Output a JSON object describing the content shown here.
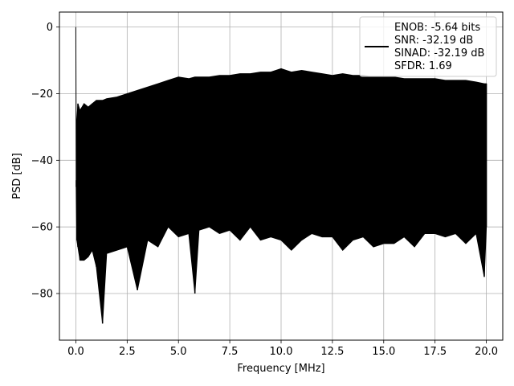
{
  "chart_data": {
    "type": "line",
    "title": "",
    "xlabel": "Frequency [MHz]",
    "ylabel": "PSD [dB]",
    "xlim": [
      -0.8,
      20.8
    ],
    "ylim": [
      -94,
      4.5
    ],
    "xticks": [
      0.0,
      2.5,
      5.0,
      7.5,
      10.0,
      12.5,
      15.0,
      17.5,
      20.0
    ],
    "xtick_labels": [
      "0.0",
      "2.5",
      "5.0",
      "7.5",
      "10.0",
      "12.5",
      "15.0",
      "17.5",
      "20.0"
    ],
    "yticks": [
      0,
      -20,
      -40,
      -60,
      -80
    ],
    "ytick_labels": [
      "0",
      "−20",
      "−40",
      "−60",
      "−80"
    ],
    "grid": true,
    "legend_position": "top-right",
    "series_color": "#000000",
    "series": [
      {
        "name": "",
        "x": [
          0.0,
          0.02,
          0.05,
          0.1,
          0.2,
          0.4,
          0.6,
          0.8,
          1.0,
          1.3,
          1.5,
          2.0,
          2.5,
          3.0,
          3.5,
          4.0,
          4.5,
          5.0,
          5.5,
          5.8,
          6.0,
          6.5,
          7.0,
          7.5,
          8.0,
          8.5,
          9.0,
          9.5,
          10.0,
          10.5,
          11.0,
          11.5,
          12.0,
          12.5,
          13.0,
          13.5,
          14.0,
          14.5,
          15.0,
          15.5,
          16.0,
          16.5,
          17.0,
          17.5,
          18.0,
          18.5,
          19.0,
          19.5,
          19.9,
          20.0
        ],
        "upper": [
          0.0,
          -46,
          -28,
          -23,
          -25,
          -23,
          -24,
          -23,
          -22,
          -22,
          -21.5,
          -21,
          -20,
          -19,
          -18,
          -17,
          -16,
          -15,
          -15.5,
          -15,
          -15,
          -15,
          -14.5,
          -14.5,
          -14,
          -14,
          -13.5,
          -13.5,
          -12.5,
          -13.5,
          -13,
          -13.5,
          -14,
          -14.5,
          -14,
          -14.5,
          -14.5,
          -15,
          -15,
          -15,
          -15.5,
          -15.5,
          -15.5,
          -15.5,
          -16,
          -16,
          -16,
          -16.5,
          -17,
          -17
        ],
        "lower": [
          0.0,
          -48,
          -64,
          -66,
          -70,
          -70,
          -69,
          -67,
          -72,
          -89,
          -68,
          -67,
          -66,
          -79,
          -64,
          -66,
          -60,
          -63,
          -62,
          -80,
          -61,
          -60,
          -62,
          -61,
          -64,
          -60,
          -64,
          -63,
          -64,
          -67,
          -64,
          -62,
          -63,
          -63,
          -67,
          -64,
          -63,
          -66,
          -65,
          -65,
          -63,
          -66,
          -62,
          -62,
          -63,
          -62,
          -65,
          -62,
          -75,
          -60
        ]
      }
    ],
    "legend_lines": [
      "ENOB: -5.64 bits",
      "SNR: -32.19 dB",
      "SINAD: -32.19 dB",
      "SFDR: 1.69"
    ]
  }
}
